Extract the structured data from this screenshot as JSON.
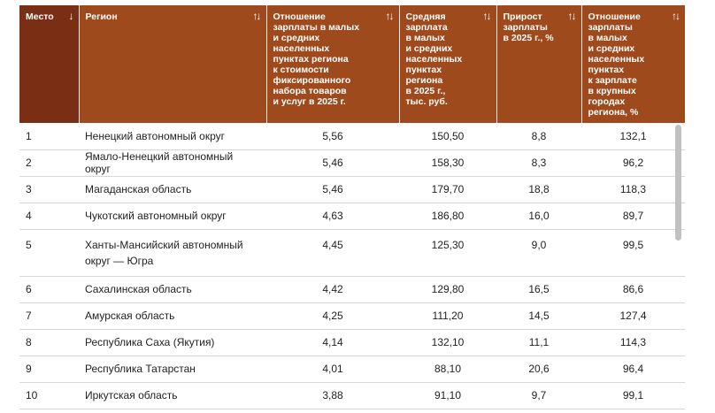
{
  "table": {
    "headers": [
      {
        "label": "Место",
        "sort": "↓"
      },
      {
        "label": "Регион",
        "sort": "↑↓"
      },
      {
        "label": "Отношение\nзарплаты в малых\nи средних населенных\nпунктах региона\nк стоимости\nфиксированного\nнабора товаров\nи услуг в 2025 г.",
        "sort": "↑↓"
      },
      {
        "label": "Средняя\nзарплата\nв малых\nи средних\nнаселенных\nпунктах\nрегиона\nв 2025 г.,\nтыс. руб.",
        "sort": "↑↓"
      },
      {
        "label": "Прирост\nзарплаты\nв 2025 г., %",
        "sort": "↑↓"
      },
      {
        "label": "Отношение\nзарплаты\nв малых\nи средних\nнаселенных\nпунктах\nк зарплате\nв крупных\nгородах\nрегиона, %",
        "sort": "↑↓"
      }
    ],
    "rows": [
      {
        "place": "1",
        "region": "Ненецкий автономный округ",
        "ratio": "5,56",
        "salary": "150,50",
        "growth": "8,8",
        "city_ratio": "132,1"
      },
      {
        "place": "2",
        "region": "Ямало-Ненецкий автономный округ",
        "ratio": "5,46",
        "salary": "158,30",
        "growth": "8,3",
        "city_ratio": "96,2"
      },
      {
        "place": "3",
        "region": "Магаданская область",
        "ratio": "5,46",
        "salary": "179,70",
        "growth": "18,8",
        "city_ratio": "118,3"
      },
      {
        "place": "4",
        "region": "Чукотский автономный округ",
        "ratio": "4,63",
        "salary": "186,80",
        "growth": "16,0",
        "city_ratio": "89,7"
      },
      {
        "place": "5",
        "region": "Ханты-Мансийский автономный\nокруг — Югра",
        "ratio": "4,45",
        "salary": "125,30",
        "growth": "9,0",
        "city_ratio": "99,5"
      },
      {
        "place": "6",
        "region": "Сахалинская область",
        "ratio": "4,42",
        "salary": "129,80",
        "growth": "16,5",
        "city_ratio": "86,6"
      },
      {
        "place": "7",
        "region": "Амурская область",
        "ratio": "4,25",
        "salary": "111,20",
        "growth": "14,5",
        "city_ratio": "127,4"
      },
      {
        "place": "8",
        "region": "Республика Саха (Якутия)",
        "ratio": "4,14",
        "salary": "132,10",
        "growth": "11,1",
        "city_ratio": "114,3"
      },
      {
        "place": "9",
        "region": "Республика Татарстан",
        "ratio": "4,01",
        "salary": "88,10",
        "growth": "20,6",
        "city_ratio": "96,4"
      },
      {
        "place": "10",
        "region": "Иркутская область",
        "ratio": "3,88",
        "salary": "91,10",
        "growth": "9,7",
        "city_ratio": "99,1"
      }
    ]
  },
  "colors": {
    "header": "#9e4a1c",
    "header_sorted": "#7a2e13"
  }
}
